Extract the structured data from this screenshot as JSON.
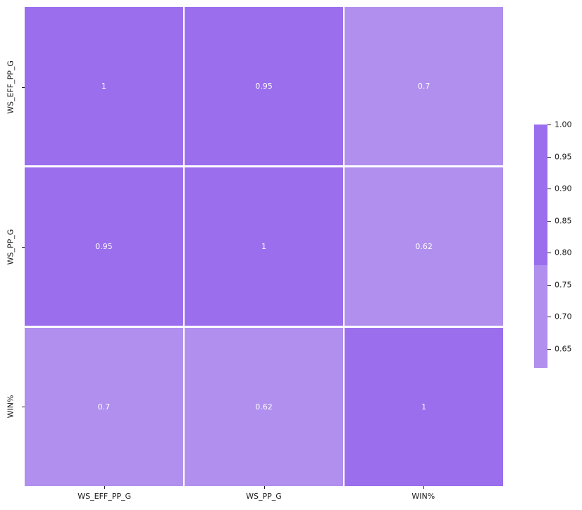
{
  "figure": {
    "background": "#ffffff",
    "text_color": "#1a1a1a"
  },
  "chart_data": {
    "type": "heatmap",
    "title": "",
    "xlabel": "",
    "ylabel": "",
    "categories": [
      "WS_EFF_PP_G",
      "WS_PP_G",
      "WIN%"
    ],
    "x_tick_labels": [
      "WS_EFF_PP_G",
      "WS_PP_G",
      "WIN%"
    ],
    "y_tick_labels": [
      "WS_EFF_PP_G",
      "WS_PP_G",
      "WIN%"
    ],
    "matrix": [
      [
        1,
        0.95,
        0.7
      ],
      [
        0.95,
        1,
        0.62
      ],
      [
        0.7,
        0.62,
        1
      ]
    ],
    "annotations": [
      [
        "1",
        "0.95",
        "0.7"
      ],
      [
        "0.95",
        "1",
        "0.62"
      ],
      [
        "0.7",
        "0.62",
        "1"
      ]
    ],
    "annotation_color": "#ffffff",
    "grid_line_color": "#ffffff",
    "colormap": {
      "high_color": "#9b6eee",
      "low_color": "#b08fee",
      "threshold": 0.78,
      "vmin": 0.62,
      "vmax": 1.0
    },
    "colorbar": {
      "tick_labels": [
        "1.00",
        "0.95",
        "0.90",
        "0.85",
        "0.80",
        "0.75",
        "0.70",
        "0.65"
      ],
      "tick_values": [
        1.0,
        0.95,
        0.9,
        0.85,
        0.8,
        0.75,
        0.7,
        0.65
      ],
      "position": "right"
    },
    "legend": null,
    "grid": false
  }
}
